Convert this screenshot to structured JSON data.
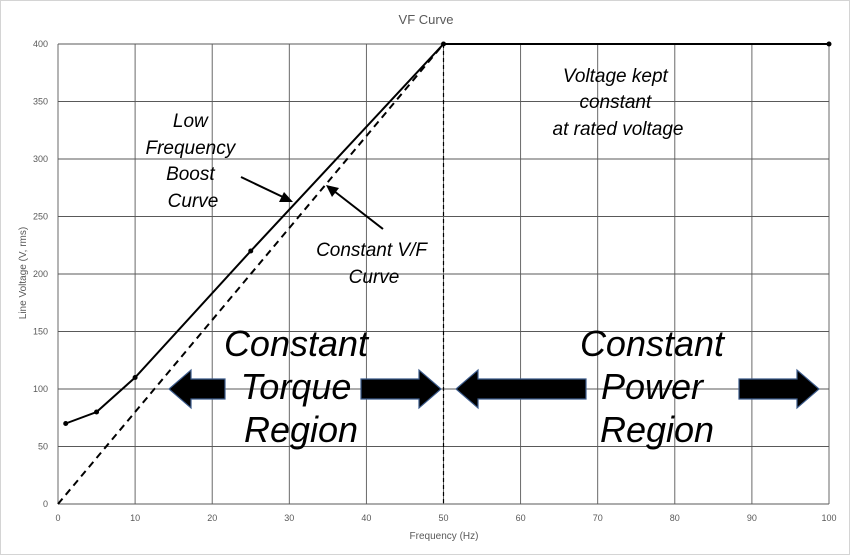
{
  "chart_data": {
    "type": "line",
    "title": "VF Curve",
    "xlabel": "Frequency (Hz)",
    "ylabel": "Line Voltage (V, rms)",
    "xlim": [
      0,
      100
    ],
    "ylim": [
      0,
      400
    ],
    "xticks": [
      0,
      10,
      20,
      30,
      40,
      50,
      60,
      70,
      80,
      90,
      100
    ],
    "yticks": [
      0,
      50,
      100,
      150,
      200,
      250,
      300,
      350,
      400
    ],
    "grid": true,
    "series": [
      {
        "style": "solid",
        "color": "#000000",
        "markers": true,
        "x": [
          1,
          5,
          10,
          25,
          50,
          100
        ],
        "y": [
          70,
          80,
          110,
          220,
          400,
          400
        ]
      },
      {
        "style": "dashed",
        "color": "#000000",
        "markers": false,
        "x": [
          0,
          50
        ],
        "y": [
          0,
          400
        ]
      }
    ],
    "annotations": {
      "boost": [
        "Low",
        "Frequency",
        "Boost",
        "Curve"
      ],
      "constant_vf": [
        "Constant V/F",
        "Curve"
      ],
      "voltage_kept": [
        "Voltage kept",
        "constant",
        "at rated voltage"
      ],
      "torque_region": [
        "Constant",
        "Torque",
        "Region"
      ],
      "power_region": [
        "Constant",
        "Power",
        "Region"
      ]
    }
  }
}
